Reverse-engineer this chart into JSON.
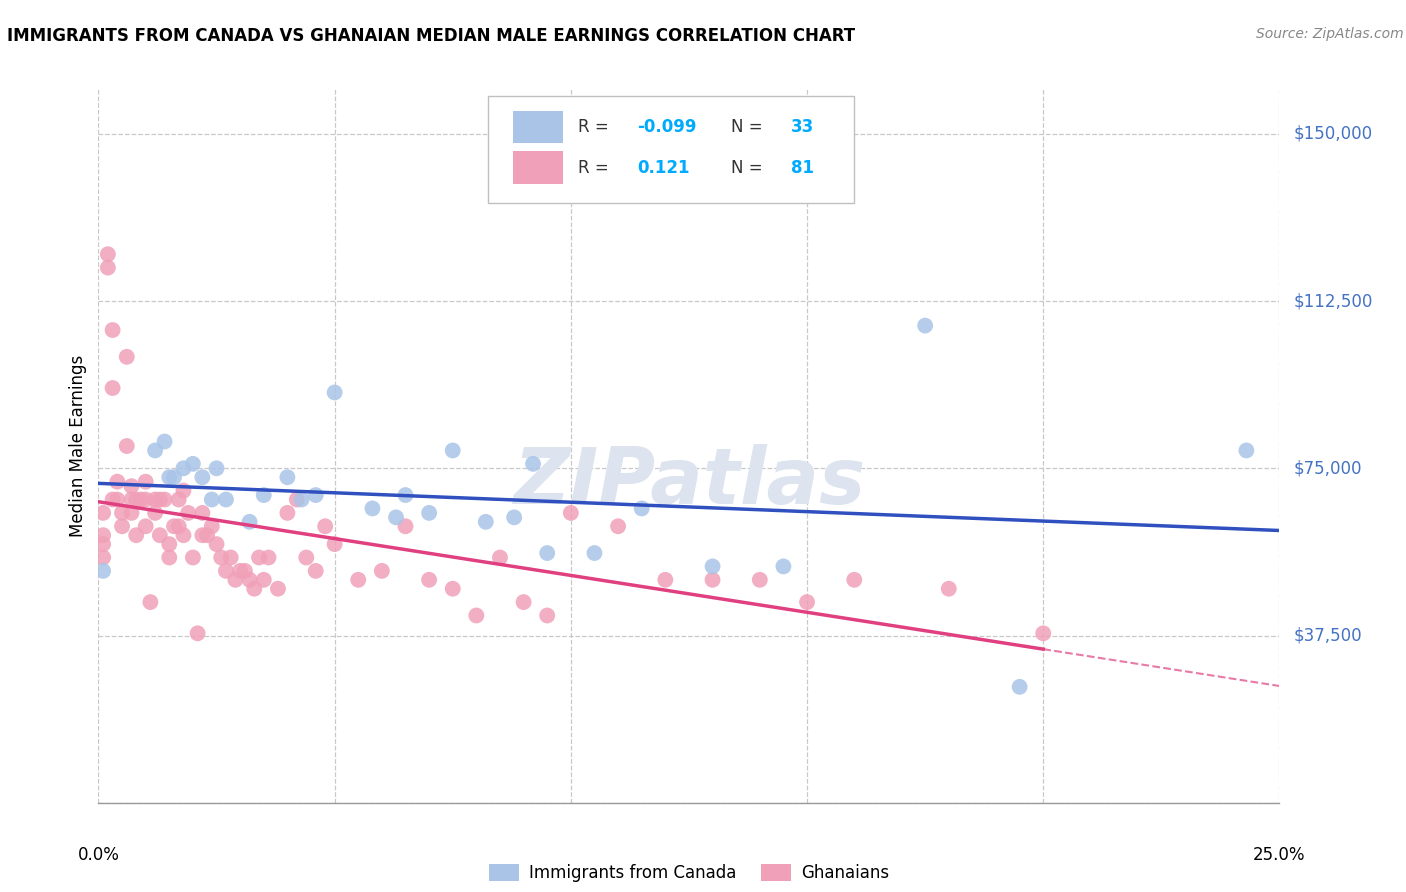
{
  "title": "IMMIGRANTS FROM CANADA VS GHANAIAN MEDIAN MALE EARNINGS CORRELATION CHART",
  "source": "Source: ZipAtlas.com",
  "ylabel": "Median Male Earnings",
  "yticks": [
    0,
    37500,
    75000,
    112500,
    150000
  ],
  "ytick_labels": [
    "",
    "$37,500",
    "$75,000",
    "$112,500",
    "$150,000"
  ],
  "xlim": [
    0.0,
    0.25
  ],
  "ylim": [
    0,
    160000
  ],
  "canada_R": -0.099,
  "canada_N": 33,
  "ghana_R": 0.121,
  "ghana_N": 81,
  "canada_line_color": "#3050c0",
  "ghana_line_color": "#e04080",
  "canada_scatter_color": "#aac4e8",
  "ghana_scatter_color": "#f0a0b8",
  "watermark_color": "#d0d8e8",
  "ytick_color": "#4472c4",
  "legend_label_canada": "Immigrants from Canada",
  "legend_label_ghana": "Ghanaians",
  "canada_points_x": [
    0.001,
    0.012,
    0.014,
    0.015,
    0.016,
    0.018,
    0.02,
    0.022,
    0.024,
    0.025,
    0.027,
    0.032,
    0.035,
    0.04,
    0.043,
    0.046,
    0.05,
    0.058,
    0.063,
    0.065,
    0.07,
    0.075,
    0.082,
    0.088,
    0.092,
    0.095,
    0.105,
    0.115,
    0.13,
    0.145,
    0.175,
    0.195,
    0.243
  ],
  "canada_points_y": [
    52000,
    79000,
    81000,
    73000,
    73000,
    75000,
    76000,
    73000,
    68000,
    75000,
    68000,
    63000,
    69000,
    73000,
    68000,
    69000,
    92000,
    66000,
    64000,
    69000,
    65000,
    79000,
    63000,
    64000,
    76000,
    56000,
    56000,
    66000,
    53000,
    53000,
    107000,
    26000,
    79000
  ],
  "ghana_points_x": [
    0.001,
    0.001,
    0.001,
    0.001,
    0.002,
    0.002,
    0.003,
    0.003,
    0.003,
    0.004,
    0.004,
    0.005,
    0.005,
    0.006,
    0.006,
    0.007,
    0.007,
    0.007,
    0.008,
    0.008,
    0.009,
    0.01,
    0.01,
    0.01,
    0.011,
    0.012,
    0.012,
    0.013,
    0.013,
    0.014,
    0.015,
    0.015,
    0.016,
    0.017,
    0.017,
    0.018,
    0.018,
    0.019,
    0.02,
    0.021,
    0.022,
    0.022,
    0.023,
    0.024,
    0.025,
    0.026,
    0.027,
    0.028,
    0.029,
    0.03,
    0.031,
    0.032,
    0.033,
    0.034,
    0.035,
    0.036,
    0.038,
    0.04,
    0.042,
    0.044,
    0.046,
    0.048,
    0.05,
    0.055,
    0.06,
    0.065,
    0.07,
    0.075,
    0.08,
    0.085,
    0.09,
    0.095,
    0.1,
    0.11,
    0.12,
    0.13,
    0.14,
    0.15,
    0.16,
    0.18,
    0.2
  ],
  "ghana_points_y": [
    65000,
    60000,
    58000,
    55000,
    120000,
    123000,
    68000,
    106000,
    93000,
    72000,
    68000,
    65000,
    62000,
    100000,
    80000,
    71000,
    68000,
    65000,
    68000,
    60000,
    68000,
    72000,
    68000,
    62000,
    45000,
    68000,
    65000,
    68000,
    60000,
    68000,
    58000,
    55000,
    62000,
    68000,
    62000,
    70000,
    60000,
    65000,
    55000,
    38000,
    65000,
    60000,
    60000,
    62000,
    58000,
    55000,
    52000,
    55000,
    50000,
    52000,
    52000,
    50000,
    48000,
    55000,
    50000,
    55000,
    48000,
    65000,
    68000,
    55000,
    52000,
    62000,
    58000,
    50000,
    52000,
    62000,
    50000,
    48000,
    42000,
    55000,
    45000,
    42000,
    65000,
    62000,
    50000,
    50000,
    50000,
    45000,
    50000,
    48000,
    38000
  ]
}
